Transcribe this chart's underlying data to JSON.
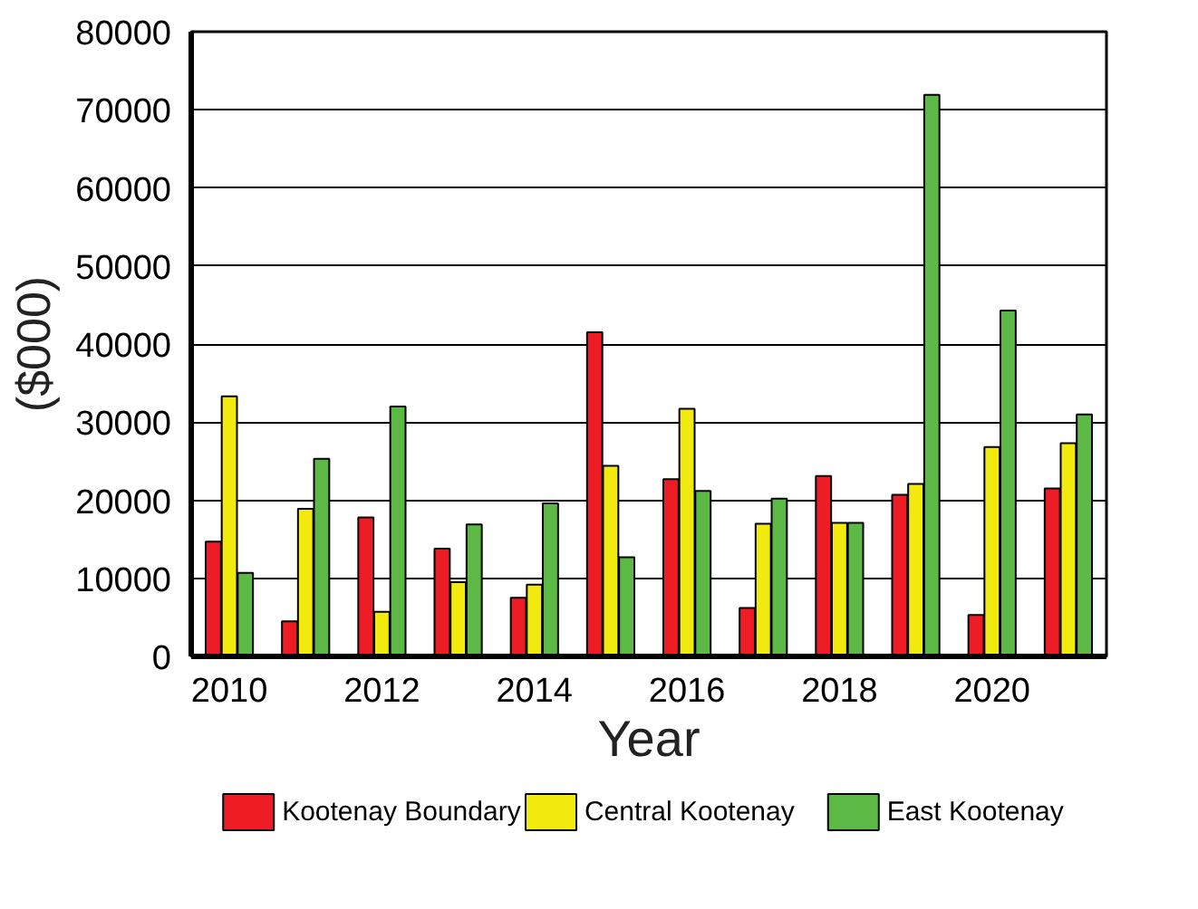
{
  "chart_data": {
    "type": "bar",
    "xlabel": "Year",
    "ylabel": "($000)",
    "x": [
      2010,
      2011,
      2012,
      2013,
      2014,
      2015,
      2016,
      2017,
      2018,
      2019,
      2020,
      2021
    ],
    "xlim": [
      2009.5,
      2021.5
    ],
    "xticks": [
      2010,
      2012,
      2014,
      2016,
      2018,
      2020
    ],
    "ylim": [
      0,
      80000
    ],
    "yticks": [
      0,
      10000,
      20000,
      30000,
      40000,
      50000,
      60000,
      70000,
      80000
    ],
    "grid": "y",
    "legend": "bottom",
    "series": [
      {
        "name": "Kootenay Boundary",
        "color": "#ee1c25",
        "values": [
          14700,
          4500,
          17800,
          13800,
          7500,
          41500,
          22700,
          6200,
          23100,
          20700,
          5300,
          21500
        ]
      },
      {
        "name": "Central Kootenay",
        "color": "#f2e90e",
        "values": [
          33300,
          18900,
          5700,
          9500,
          9200,
          24400,
          31700,
          17000,
          17100,
          22100,
          26800,
          27300
        ]
      },
      {
        "name": "East Kootenay",
        "color": "#5cb946",
        "values": [
          10700,
          25300,
          32000,
          16900,
          19600,
          12700,
          21200,
          20200,
          17100,
          71900,
          44300,
          31000
        ]
      }
    ]
  }
}
